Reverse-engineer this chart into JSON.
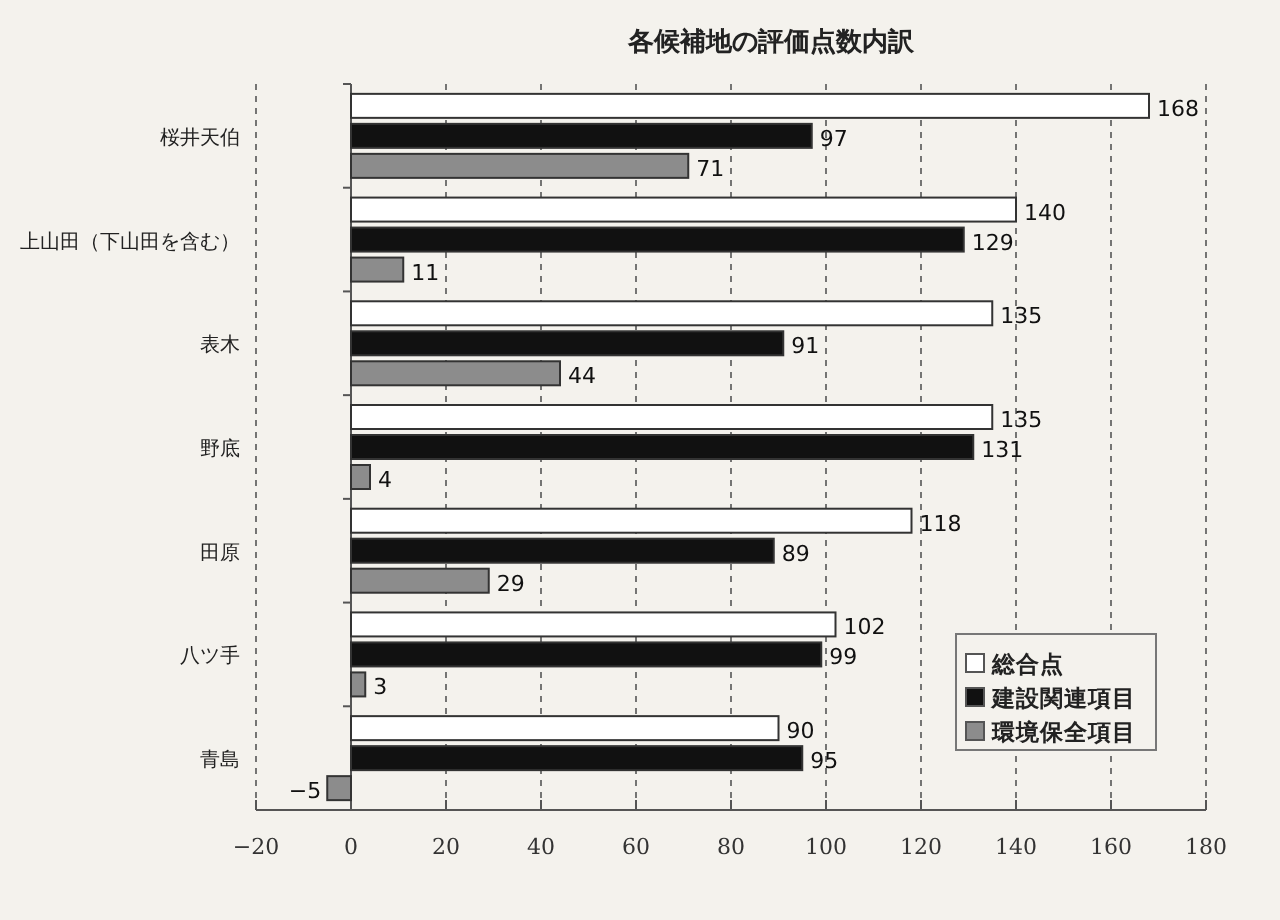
{
  "chart_data": {
    "type": "bar",
    "orientation": "horizontal",
    "title": "各候補地の評価点数内訳",
    "categories": [
      "桜井天伯",
      "上山田（下山田を含む）",
      "表木",
      "野底",
      "田原",
      "八ツ手",
      "青島"
    ],
    "series": [
      {
        "name": "総合点",
        "color": "#ffffff",
        "values": [
          168,
          140,
          135,
          135,
          118,
          102,
          90
        ]
      },
      {
        "name": "建設関連項目",
        "color": "#111111",
        "values": [
          97,
          129,
          91,
          131,
          89,
          99,
          95
        ]
      },
      {
        "name": "環境保全項目",
        "color": "#8c8c8c",
        "values": [
          71,
          11,
          44,
          4,
          29,
          3,
          -5
        ]
      }
    ],
    "xlim": [
      -20,
      180
    ],
    "xticks": [
      -20,
      0,
      20,
      40,
      60,
      80,
      100,
      120,
      140,
      160,
      180
    ],
    "grid": "x",
    "legend": "bottom right",
    "data_labels": true
  }
}
